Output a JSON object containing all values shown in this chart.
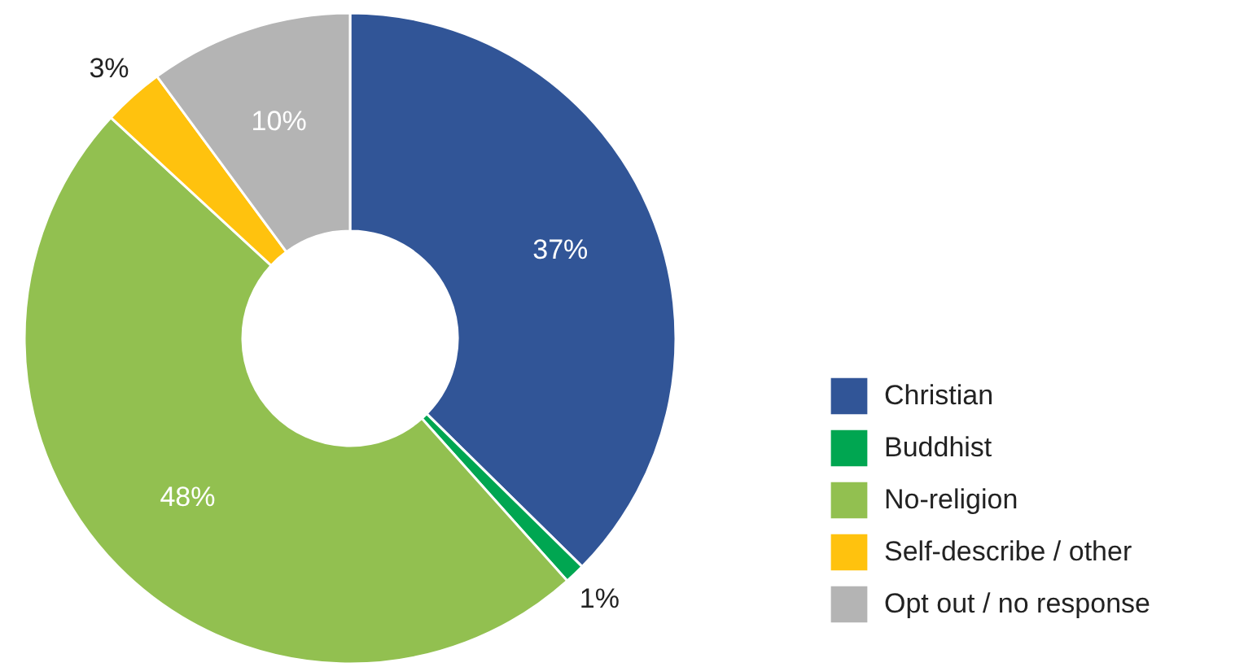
{
  "chart_data": {
    "type": "donut",
    "categories": [
      "Christian",
      "Buddhist",
      "No-religion",
      "Self-describe / other",
      "Opt out / no response"
    ],
    "values": [
      37,
      1,
      48,
      3,
      10
    ],
    "colors": [
      "#315597",
      "#00a651",
      "#92c050",
      "#ffc20e",
      "#b4b4b4"
    ],
    "value_labels": [
      "37%",
      "1%",
      "48%",
      "3%",
      "10%"
    ],
    "legend": "bottom right"
  }
}
